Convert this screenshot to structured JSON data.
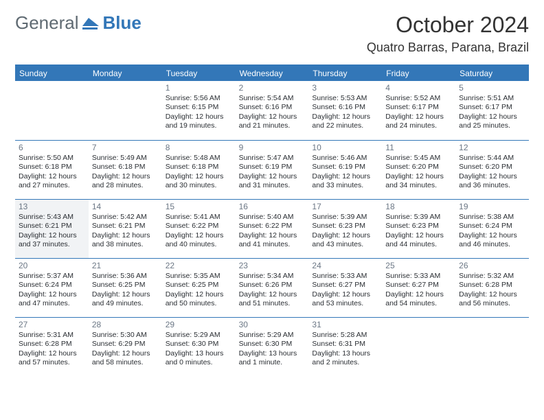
{
  "brand": {
    "part1": "General",
    "part2": "Blue"
  },
  "title": "October 2024",
  "location": "Quatro Barras, Parana, Brazil",
  "colors": {
    "brand_blue": "#3377b8",
    "brand_gray": "#5f6a72",
    "header_bg": "#3377b8",
    "header_fg": "#ffffff",
    "daynum_color": "#6b7785",
    "text_color": "#2a2e33",
    "rule_color": "#3377b8",
    "shaded_bg": "#f1f3f5",
    "bg": "#ffffff"
  },
  "dow": [
    "Sunday",
    "Monday",
    "Tuesday",
    "Wednesday",
    "Thursday",
    "Friday",
    "Saturday"
  ],
  "grid": {
    "columns": 7,
    "rows": 5,
    "leading_blanks": 2,
    "days": [
      {
        "n": 1,
        "sr": "5:56 AM",
        "ss": "6:15 PM",
        "dl": "12 hours and 19 minutes.",
        "shaded": false
      },
      {
        "n": 2,
        "sr": "5:54 AM",
        "ss": "6:16 PM",
        "dl": "12 hours and 21 minutes.",
        "shaded": false
      },
      {
        "n": 3,
        "sr": "5:53 AM",
        "ss": "6:16 PM",
        "dl": "12 hours and 22 minutes.",
        "shaded": false
      },
      {
        "n": 4,
        "sr": "5:52 AM",
        "ss": "6:17 PM",
        "dl": "12 hours and 24 minutes.",
        "shaded": false
      },
      {
        "n": 5,
        "sr": "5:51 AM",
        "ss": "6:17 PM",
        "dl": "12 hours and 25 minutes.",
        "shaded": false
      },
      {
        "n": 6,
        "sr": "5:50 AM",
        "ss": "6:18 PM",
        "dl": "12 hours and 27 minutes.",
        "shaded": false
      },
      {
        "n": 7,
        "sr": "5:49 AM",
        "ss": "6:18 PM",
        "dl": "12 hours and 28 minutes.",
        "shaded": false
      },
      {
        "n": 8,
        "sr": "5:48 AM",
        "ss": "6:18 PM",
        "dl": "12 hours and 30 minutes.",
        "shaded": false
      },
      {
        "n": 9,
        "sr": "5:47 AM",
        "ss": "6:19 PM",
        "dl": "12 hours and 31 minutes.",
        "shaded": false
      },
      {
        "n": 10,
        "sr": "5:46 AM",
        "ss": "6:19 PM",
        "dl": "12 hours and 33 minutes.",
        "shaded": false
      },
      {
        "n": 11,
        "sr": "5:45 AM",
        "ss": "6:20 PM",
        "dl": "12 hours and 34 minutes.",
        "shaded": false
      },
      {
        "n": 12,
        "sr": "5:44 AM",
        "ss": "6:20 PM",
        "dl": "12 hours and 36 minutes.",
        "shaded": false
      },
      {
        "n": 13,
        "sr": "5:43 AM",
        "ss": "6:21 PM",
        "dl": "12 hours and 37 minutes.",
        "shaded": true
      },
      {
        "n": 14,
        "sr": "5:42 AM",
        "ss": "6:21 PM",
        "dl": "12 hours and 38 minutes.",
        "shaded": false
      },
      {
        "n": 15,
        "sr": "5:41 AM",
        "ss": "6:22 PM",
        "dl": "12 hours and 40 minutes.",
        "shaded": false
      },
      {
        "n": 16,
        "sr": "5:40 AM",
        "ss": "6:22 PM",
        "dl": "12 hours and 41 minutes.",
        "shaded": false
      },
      {
        "n": 17,
        "sr": "5:39 AM",
        "ss": "6:23 PM",
        "dl": "12 hours and 43 minutes.",
        "shaded": false
      },
      {
        "n": 18,
        "sr": "5:39 AM",
        "ss": "6:23 PM",
        "dl": "12 hours and 44 minutes.",
        "shaded": false
      },
      {
        "n": 19,
        "sr": "5:38 AM",
        "ss": "6:24 PM",
        "dl": "12 hours and 46 minutes.",
        "shaded": false
      },
      {
        "n": 20,
        "sr": "5:37 AM",
        "ss": "6:24 PM",
        "dl": "12 hours and 47 minutes.",
        "shaded": false
      },
      {
        "n": 21,
        "sr": "5:36 AM",
        "ss": "6:25 PM",
        "dl": "12 hours and 49 minutes.",
        "shaded": false
      },
      {
        "n": 22,
        "sr": "5:35 AM",
        "ss": "6:25 PM",
        "dl": "12 hours and 50 minutes.",
        "shaded": false
      },
      {
        "n": 23,
        "sr": "5:34 AM",
        "ss": "6:26 PM",
        "dl": "12 hours and 51 minutes.",
        "shaded": false
      },
      {
        "n": 24,
        "sr": "5:33 AM",
        "ss": "6:27 PM",
        "dl": "12 hours and 53 minutes.",
        "shaded": false
      },
      {
        "n": 25,
        "sr": "5:33 AM",
        "ss": "6:27 PM",
        "dl": "12 hours and 54 minutes.",
        "shaded": false
      },
      {
        "n": 26,
        "sr": "5:32 AM",
        "ss": "6:28 PM",
        "dl": "12 hours and 56 minutes.",
        "shaded": false
      },
      {
        "n": 27,
        "sr": "5:31 AM",
        "ss": "6:28 PM",
        "dl": "12 hours and 57 minutes.",
        "shaded": false
      },
      {
        "n": 28,
        "sr": "5:30 AM",
        "ss": "6:29 PM",
        "dl": "12 hours and 58 minutes.",
        "shaded": false
      },
      {
        "n": 29,
        "sr": "5:29 AM",
        "ss": "6:30 PM",
        "dl": "13 hours and 0 minutes.",
        "shaded": false
      },
      {
        "n": 30,
        "sr": "5:29 AM",
        "ss": "6:30 PM",
        "dl": "13 hours and 1 minute.",
        "shaded": false
      },
      {
        "n": 31,
        "sr": "5:28 AM",
        "ss": "6:31 PM",
        "dl": "13 hours and 2 minutes.",
        "shaded": false
      }
    ]
  },
  "labels": {
    "sunrise": "Sunrise:",
    "sunset": "Sunset:",
    "daylight": "Daylight:"
  }
}
